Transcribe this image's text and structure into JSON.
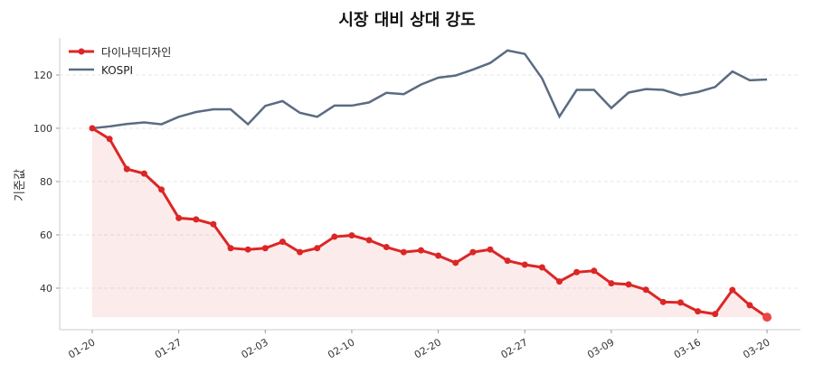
{
  "chart_data": {
    "type": "line",
    "title": "시장 대비 상대 강도",
    "xlabel": "",
    "ylabel": "기준값",
    "ylim": [
      24.4,
      133.9
    ],
    "yticks": [
      40,
      60,
      80,
      100,
      120
    ],
    "grid": "horizontal dashed",
    "legend": "top-left",
    "xticks": [
      {
        "index": 0,
        "label": "01-20"
      },
      {
        "index": 5,
        "label": "01-27"
      },
      {
        "index": 10,
        "label": "02-03"
      },
      {
        "index": 15,
        "label": "02-10"
      },
      {
        "index": 20,
        "label": "02-20"
      },
      {
        "index": 25,
        "label": "02-27"
      },
      {
        "index": 30,
        "label": "03-09"
      },
      {
        "index": 35,
        "label": "03-16"
      },
      {
        "index": 39,
        "label": "03-20"
      }
    ],
    "series": [
      {
        "name": "다이나믹디자인",
        "color": "#dc2626",
        "markers": true,
        "fill": true,
        "values": [
          100,
          96,
          84.7,
          83,
          77,
          66.3,
          65.8,
          64,
          55,
          54.5,
          55,
          57.4,
          53.5,
          55,
          59.3,
          59.8,
          58,
          55.4,
          53.5,
          54.2,
          52.2,
          49.5,
          53.5,
          54.5,
          50.3,
          48.8,
          47.8,
          42.5,
          46,
          46.5,
          41.8,
          41.4,
          39.4,
          34.8,
          34.6,
          31.3,
          30.3,
          39.3,
          33.6,
          29.1
        ]
      },
      {
        "name": "KOSPI",
        "color": "#5b6b82",
        "markers": false,
        "fill": false,
        "values": [
          100,
          100.7,
          101.6,
          102.2,
          101.5,
          104.3,
          106.1,
          107.1,
          107.1,
          101.5,
          108.4,
          110.2,
          105.8,
          104.3,
          108.5,
          108.5,
          109.7,
          113.3,
          112.8,
          116.4,
          119,
          119.8,
          122,
          124.5,
          129.2,
          127.9,
          118.7,
          104.4,
          114.4,
          114.4,
          107.6,
          113.4,
          114.7,
          114.4,
          112.4,
          113.6,
          115.5,
          121.3,
          118,
          118.3
        ]
      }
    ]
  }
}
